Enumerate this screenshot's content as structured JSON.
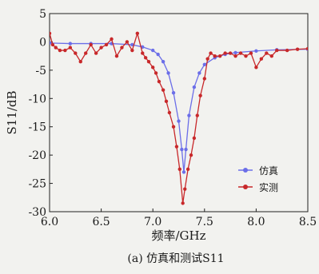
{
  "chart_data": {
    "type": "line",
    "title": "",
    "caption": "(a) 仿真和测试S11",
    "xlabel": "频率/GHz",
    "ylabel": "S11/dB",
    "xlim": [
      6.0,
      8.5
    ],
    "ylim": [
      -30,
      5
    ],
    "x_ticks": [
      6.0,
      6.5,
      7.0,
      7.5,
      8.0,
      8.5
    ],
    "x_tick_labels": [
      "6.0",
      "6.5",
      "7.0",
      "7.5",
      "8.0",
      "8.5"
    ],
    "y_ticks": [
      5,
      0,
      -5,
      -10,
      -15,
      -20,
      -25,
      -30
    ],
    "y_tick_labels": [
      "5",
      "0",
      "-5",
      "-10",
      "-15",
      "-20",
      "-25",
      "-30"
    ],
    "legend_position": "bottom-right",
    "series": [
      {
        "name": "仿真",
        "color": "#6b6ee8",
        "marker": "circle",
        "x": [
          6.0,
          6.2,
          6.4,
          6.6,
          6.8,
          6.9,
          7.0,
          7.05,
          7.1,
          7.15,
          7.2,
          7.25,
          7.28,
          7.3,
          7.32,
          7.35,
          7.4,
          7.45,
          7.5,
          7.6,
          7.7,
          7.8,
          8.0,
          8.2,
          8.5
        ],
        "y": [
          -0.2,
          -0.3,
          -0.3,
          -0.3,
          -0.5,
          -0.9,
          -1.5,
          -2.2,
          -3.5,
          -5.5,
          -9.0,
          -14.0,
          -19.0,
          -23.0,
          -19.0,
          -13.0,
          -8.0,
          -5.5,
          -4.0,
          -2.8,
          -2.2,
          -1.9,
          -1.6,
          -1.4,
          -1.3
        ]
      },
      {
        "name": "实测",
        "color": "#c8282a",
        "marker": "circle",
        "x": [
          6.0,
          6.03,
          6.06,
          6.1,
          6.15,
          6.2,
          6.25,
          6.3,
          6.35,
          6.4,
          6.45,
          6.5,
          6.55,
          6.6,
          6.65,
          6.7,
          6.75,
          6.8,
          6.85,
          6.9,
          6.93,
          6.96,
          7.0,
          7.03,
          7.06,
          7.1,
          7.13,
          7.16,
          7.2,
          7.23,
          7.26,
          7.29,
          7.31,
          7.34,
          7.37,
          7.4,
          7.43,
          7.46,
          7.5,
          7.53,
          7.56,
          7.6,
          7.65,
          7.7,
          7.75,
          7.8,
          7.85,
          7.9,
          7.95,
          8.0,
          8.05,
          8.1,
          8.15,
          8.2,
          8.3,
          8.4,
          8.5
        ],
        "y": [
          1.5,
          -0.5,
          -1.0,
          -1.5,
          -1.5,
          -1.0,
          -2.0,
          -3.5,
          -2.0,
          -0.5,
          -2.0,
          -1.0,
          -0.5,
          0.5,
          -2.5,
          -1.0,
          0.0,
          -1.5,
          1.5,
          -2.0,
          -2.8,
          -3.5,
          -4.5,
          -5.5,
          -7.0,
          -8.5,
          -10.5,
          -12.5,
          -15.0,
          -18.5,
          -22.5,
          -28.5,
          -26.0,
          -22.5,
          -20.0,
          -17.0,
          -13.0,
          -9.5,
          -6.5,
          -3.0,
          -2.0,
          -2.5,
          -2.5,
          -2.0,
          -2.0,
          -2.5,
          -2.0,
          -2.5,
          -2.0,
          -4.5,
          -3.0,
          -2.0,
          -2.5,
          -1.5,
          -1.5,
          -1.3,
          -1.2
        ]
      }
    ]
  }
}
